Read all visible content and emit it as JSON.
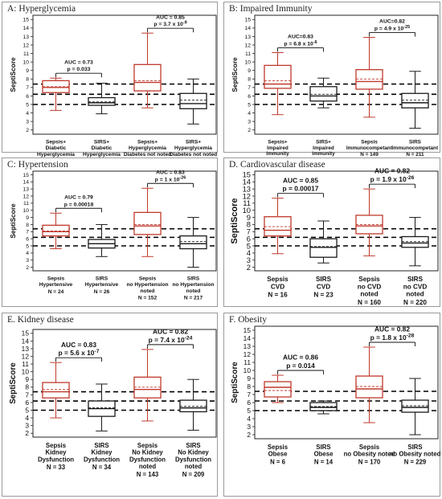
{
  "colors": {
    "sepsis": "#c0392b",
    "sirs": "#1a1a1a",
    "reference": "#000000"
  },
  "chart_data": [
    {
      "type": "boxplot",
      "title": "A: Hyperglycemia",
      "ylabel": "SeptiScore",
      "yticks": [
        "2",
        "3",
        "4",
        "5",
        "6",
        "7",
        "8",
        "9",
        "10",
        "11",
        "12",
        "13",
        "14",
        "15"
      ],
      "ylim": [
        1.5,
        15.5
      ],
      "reference_lines": [
        5,
        6.2,
        7.4
      ],
      "boxes": [
        {
          "group": "sepsis",
          "labels": [
            "Sepsis+",
            "Diabetic",
            "Hyperglycemia"
          ],
          "n": "N = 19",
          "min": 4.3,
          "q1": 6.4,
          "median": 7.0,
          "mean": 7.1,
          "q3": 7.8,
          "max": 8.1
        },
        {
          "group": "sirs",
          "labels": [
            "SIRS+",
            "Diabetic",
            "Hyperglycemia"
          ],
          "n": "N = 16",
          "min": 3.9,
          "q1": 4.9,
          "median": 5.2,
          "mean": 5.3,
          "q3": 5.8,
          "max": 7.5
        },
        {
          "group": "sepsis",
          "labels": [
            "Sepsis+",
            "Hyperglycemia",
            "Diabetes not noted"
          ],
          "n": "N = 40",
          "min": 4.6,
          "q1": 6.6,
          "median": 7.6,
          "mean": 7.8,
          "q3": 9.7,
          "max": 13.4
        },
        {
          "group": "sirs",
          "labels": [
            "SIRS+",
            "Hyperglycemia",
            "Diabetes not noted"
          ],
          "n": "N = 62",
          "min": 2.7,
          "q1": 4.5,
          "median": 5.1,
          "mean": 5.5,
          "q3": 6.3,
          "max": 8.0
        }
      ],
      "comparisons": [
        {
          "from": 0,
          "to": 1,
          "auc": "AUC = 0.73",
          "p": "p = 0.033",
          "p_exp": ""
        },
        {
          "from": 2,
          "to": 3,
          "auc": "AUC = 0.85",
          "p": "p = 3.7 x 10",
          "p_exp": "-9"
        }
      ]
    },
    {
      "type": "boxplot",
      "title": "B: Impaired Immunity",
      "ylabel": "SeptiScore",
      "yticks": [
        "2",
        "3",
        "4",
        "5",
        "6",
        "7",
        "8",
        "9",
        "10",
        "11",
        "12",
        "13",
        "14",
        "15"
      ],
      "ylim": [
        1.5,
        15.5
      ],
      "reference_lines": [
        5,
        6.2,
        7.4
      ],
      "boxes": [
        {
          "group": "sepsis",
          "labels": [
            "Sepsis+",
            "Impaired",
            "Immunity"
          ],
          "n": "N = 27",
          "min": 3.8,
          "q1": 6.9,
          "median": 7.4,
          "mean": 7.8,
          "q3": 9.6,
          "max": 11.1
        },
        {
          "group": "sirs",
          "labels": [
            "SIRS+",
            "Impaired",
            "Immunity"
          ],
          "n": "N = 32",
          "min": 4.6,
          "q1": 5.4,
          "median": 6.0,
          "mean": 6.2,
          "q3": 7.1,
          "max": 8.1
        },
        {
          "group": "sepsis",
          "labels": [
            "Sepsis",
            "Immunocompetant"
          ],
          "n": "N = 149",
          "min": 3.5,
          "q1": 6.8,
          "median": 7.7,
          "mean": 8.0,
          "q3": 9.1,
          "max": 12.9
        },
        {
          "group": "sirs",
          "labels": [
            "SIRS",
            "Immunocompetant"
          ],
          "n": "N = 211",
          "min": 2.2,
          "q1": 4.6,
          "median": 5.2,
          "mean": 5.5,
          "q3": 6.3,
          "max": 8.9
        }
      ],
      "comparisons": [
        {
          "from": 0,
          "to": 1,
          "auc": "AUC=0.83",
          "p": "p = 6.8 x 10",
          "p_exp": "-6"
        },
        {
          "from": 2,
          "to": 3,
          "auc": "AUC=0.82",
          "p": "p = 4.9 x 10",
          "p_exp": "-25"
        }
      ]
    },
    {
      "type": "boxplot",
      "title": "C: Hypertension",
      "ylabel": "SeptiScore",
      "yticks": [
        "2",
        "3",
        "4",
        "5",
        "6",
        "7",
        "8",
        "9",
        "10",
        "11",
        "12",
        "13",
        "14",
        "15"
      ],
      "ylim": [
        1.5,
        15.5
      ],
      "reference_lines": [
        5,
        6.2,
        7.4
      ],
      "boxes": [
        {
          "group": "sepsis",
          "labels": [
            "Sepsis",
            "Hypertensive"
          ],
          "n": "N = 24",
          "min": 4.6,
          "q1": 6.4,
          "median": 7.0,
          "mean": 7.1,
          "q3": 7.9,
          "max": 9.6
        },
        {
          "group": "sirs",
          "labels": [
            "SIRS",
            "Hypertensive"
          ],
          "n": "N = 26",
          "min": 3.5,
          "q1": 4.7,
          "median": 5.3,
          "mean": 5.3,
          "q3": 5.9,
          "max": 8.0
        },
        {
          "group": "sepsis",
          "labels": [
            "Sepsis",
            "no Hypertension",
            "noted"
          ],
          "n": "N = 152",
          "min": 3.5,
          "q1": 6.6,
          "median": 7.8,
          "mean": 8.0,
          "q3": 9.7,
          "max": 13.1
        },
        {
          "group": "sirs",
          "labels": [
            "SIRS",
            "no Hypertension",
            "noted"
          ],
          "n": "N = 217",
          "min": 2.0,
          "q1": 4.6,
          "median": 5.3,
          "mean": 5.6,
          "q3": 6.4,
          "max": 9.0
        }
      ],
      "comparisons": [
        {
          "from": 0,
          "to": 1,
          "auc": "AUC = 0.79",
          "p": "p = 0.00018",
          "p_exp": ""
        },
        {
          "from": 2,
          "to": 3,
          "auc": "AUC = 0.83",
          "p": "p = 1 x 10",
          "p_exp": "-26"
        }
      ]
    },
    {
      "type": "boxplot",
      "title": "D. Cardiovascular disease",
      "ylabel": "SeptiScore",
      "yticks": [
        "2",
        "3",
        "4",
        "5",
        "6",
        "7",
        "8",
        "9",
        "10",
        "11",
        "12",
        "13",
        "14",
        "15"
      ],
      "ylim": [
        1.5,
        15.5
      ],
      "reference_lines": [
        5,
        6.2,
        7.4
      ],
      "boxes": [
        {
          "group": "sepsis",
          "labels": [
            "Sepsis",
            "CVD"
          ],
          "n": "N = 16",
          "min": 3.9,
          "q1": 6.4,
          "median": 7.2,
          "mean": 7.7,
          "q3": 9.1,
          "max": 11.7
        },
        {
          "group": "sirs",
          "labels": [
            "SIRS",
            "CVD"
          ],
          "n": "N = 23",
          "min": 2.6,
          "q1": 3.4,
          "median": 4.8,
          "mean": 4.9,
          "q3": 6.0,
          "max": 8.5
        },
        {
          "group": "sepsis",
          "labels": [
            "Sepsis",
            "no CVD",
            "noted"
          ],
          "n": "N = 160",
          "min": 3.6,
          "q1": 6.7,
          "median": 7.8,
          "mean": 8.0,
          "q3": 9.3,
          "max": 13.0
        },
        {
          "group": "sirs",
          "labels": [
            "SIRS",
            "no CVD",
            "noted"
          ],
          "n": "N = 220",
          "min": 2.2,
          "q1": 4.8,
          "median": 5.4,
          "mean": 5.6,
          "q3": 6.3,
          "max": 9.0
        }
      ],
      "comparisons": [
        {
          "from": 0,
          "to": 1,
          "auc": "AUC = 0.85",
          "p": "p = 0.00017",
          "p_exp": ""
        },
        {
          "from": 2,
          "to": 3,
          "auc": "AUC = 0.82",
          "p": "p = 1.9 x 10",
          "p_exp": "-26"
        }
      ]
    },
    {
      "type": "boxplot",
      "title": "E. Kidney disease",
      "ylabel": "SeptiScore",
      "yticks": [
        "2",
        "3",
        "4",
        "5",
        "6",
        "7",
        "8",
        "9",
        "10",
        "11",
        "12",
        "13",
        "14",
        "15"
      ],
      "ylim": [
        1.5,
        15.5
      ],
      "reference_lines": [
        5,
        6.2,
        7.4
      ],
      "boxes": [
        {
          "group": "sepsis",
          "labels": [
            "Sepsis",
            "Kidney",
            "Dysfunction"
          ],
          "n": "N = 33",
          "min": 4.0,
          "q1": 6.6,
          "median": 7.4,
          "mean": 7.7,
          "q3": 8.6,
          "max": 11.2
        },
        {
          "group": "sirs",
          "labels": [
            "SIRS",
            "Kidney",
            "Dysfunction"
          ],
          "n": "N = 34",
          "min": 2.3,
          "q1": 4.2,
          "median": 5.2,
          "mean": 5.3,
          "q3": 6.2,
          "max": 8.4
        },
        {
          "group": "sepsis",
          "labels": [
            "Sepsis",
            "No Kidney",
            "Dysfunction",
            "noted"
          ],
          "n": "N = 143",
          "min": 3.6,
          "q1": 6.6,
          "median": 7.7,
          "mean": 8.0,
          "q3": 9.3,
          "max": 12.9
        },
        {
          "group": "sirs",
          "labels": [
            "SIRS",
            "No Kidney",
            "Dysfunction",
            "noted"
          ],
          "n": "N = 209",
          "min": 2.4,
          "q1": 4.8,
          "median": 5.3,
          "mean": 5.5,
          "q3": 6.3,
          "max": 9.0
        }
      ],
      "comparisons": [
        {
          "from": 0,
          "to": 1,
          "auc": "AUC = 0.83",
          "p": "p = 5.6 x 10",
          "p_exp": "-7"
        },
        {
          "from": 2,
          "to": 3,
          "auc": "AUC = 0.82",
          "p": "p = 7.4 x 10",
          "p_exp": "-24"
        }
      ]
    },
    {
      "type": "boxplot",
      "title": "F. Obesity",
      "ylabel": "SeptiScore",
      "yticks": [
        "2",
        "3",
        "4",
        "5",
        "6",
        "7",
        "8",
        "9",
        "10",
        "11",
        "12",
        "13",
        "14",
        "15"
      ],
      "ylim": [
        1.5,
        15.5
      ],
      "reference_lines": [
        5,
        6.2,
        7.4
      ],
      "boxes": [
        {
          "group": "sepsis",
          "labels": [
            "Sepsis",
            "Obese"
          ],
          "n": "N = 6",
          "min": 6.0,
          "q1": 6.7,
          "median": 7.9,
          "mean": 7.5,
          "q3": 8.6,
          "max": 9.4
        },
        {
          "group": "sirs",
          "labels": [
            "SIRS",
            "Obese"
          ],
          "n": "N = 14",
          "min": 4.6,
          "q1": 5.0,
          "median": 5.4,
          "mean": 5.5,
          "q3": 6.0,
          "max": 6.2
        },
        {
          "group": "sepsis",
          "labels": [
            "Sepsis",
            "no Obesity noted"
          ],
          "n": "N = 170",
          "min": 3.5,
          "q1": 6.6,
          "median": 7.7,
          "mean": 8.0,
          "q3": 9.3,
          "max": 12.9
        },
        {
          "group": "sirs",
          "labels": [
            "SIRS",
            "no Obesity noted"
          ],
          "n": "N = 229",
          "min": 2.0,
          "q1": 4.8,
          "median": 5.4,
          "mean": 5.6,
          "q3": 6.3,
          "max": 9.0
        }
      ],
      "comparisons": [
        {
          "from": 0,
          "to": 1,
          "auc": "AUC = 0.86",
          "p": "p = 0.014",
          "p_exp": ""
        },
        {
          "from": 2,
          "to": 3,
          "auc": "AUC = 0.82",
          "p": "p = 1.8 x 10",
          "p_exp": "-28"
        }
      ]
    }
  ]
}
